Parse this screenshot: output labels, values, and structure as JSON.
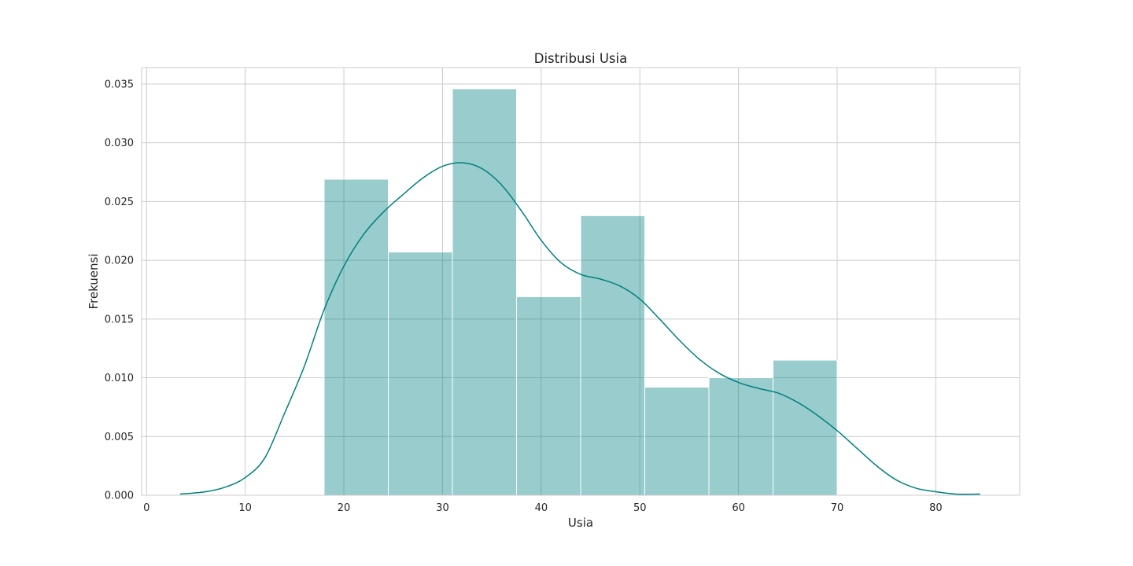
{
  "chart_data": {
    "type": "histogram",
    "title": "Distribusi Usia",
    "xlabel": "Usia",
    "ylabel": "Frekuensi",
    "xlim": [
      -0.5,
      88.5
    ],
    "ylim": [
      0,
      0.0364
    ],
    "x_ticks": [
      0,
      10,
      20,
      30,
      40,
      50,
      60,
      70,
      80
    ],
    "y_ticks": [
      0.0,
      0.005,
      0.01,
      0.015,
      0.02,
      0.025,
      0.03,
      0.035
    ],
    "y_tick_labels": [
      "0.000",
      "0.005",
      "0.010",
      "0.015",
      "0.020",
      "0.025",
      "0.030",
      "0.035"
    ],
    "grid": true,
    "bins": [
      {
        "x0": 18.0,
        "x1": 24.5,
        "value": 0.0269
      },
      {
        "x0": 24.5,
        "x1": 31.0,
        "value": 0.0207
      },
      {
        "x0": 31.0,
        "x1": 37.5,
        "value": 0.0346
      },
      {
        "x0": 37.5,
        "x1": 44.0,
        "value": 0.0169
      },
      {
        "x0": 44.0,
        "x1": 50.5,
        "value": 0.0238
      },
      {
        "x0": 50.5,
        "x1": 57.0,
        "value": 0.0092
      },
      {
        "x0": 57.0,
        "x1": 63.5,
        "value": 0.01
      },
      {
        "x0": 63.5,
        "x1": 70.0,
        "value": 0.0115
      }
    ],
    "kde": [
      [
        3.4,
        0.0001
      ],
      [
        6,
        0.0003
      ],
      [
        8,
        0.0007
      ],
      [
        10,
        0.0015
      ],
      [
        12,
        0.0032
      ],
      [
        14,
        0.007
      ],
      [
        16,
        0.011
      ],
      [
        18,
        0.0158
      ],
      [
        20,
        0.0195
      ],
      [
        22,
        0.0222
      ],
      [
        24,
        0.0241
      ],
      [
        26,
        0.0256
      ],
      [
        28,
        0.027
      ],
      [
        30,
        0.028
      ],
      [
        32,
        0.0283
      ],
      [
        34,
        0.0278
      ],
      [
        36,
        0.0264
      ],
      [
        38,
        0.0242
      ],
      [
        40,
        0.0217
      ],
      [
        42,
        0.0198
      ],
      [
        44,
        0.0188
      ],
      [
        46,
        0.0184
      ],
      [
        48,
        0.0178
      ],
      [
        50,
        0.0167
      ],
      [
        52,
        0.015
      ],
      [
        54,
        0.0132
      ],
      [
        56,
        0.0116
      ],
      [
        58,
        0.0104
      ],
      [
        60,
        0.0096
      ],
      [
        62,
        0.0091
      ],
      [
        64,
        0.0087
      ],
      [
        66,
        0.0079
      ],
      [
        68,
        0.0068
      ],
      [
        70,
        0.0055
      ],
      [
        72,
        0.004
      ],
      [
        74,
        0.0025
      ],
      [
        76,
        0.0013
      ],
      [
        78,
        0.0006
      ],
      [
        80,
        0.0003
      ],
      [
        82,
        0.0001
      ],
      [
        84.5,
        0.0001
      ]
    ],
    "colors": {
      "bar_fill": "#008080",
      "bar_opacity": 0.4,
      "kde_line": "#008080",
      "grid": "#cccccc",
      "spine": "#cccccc"
    }
  }
}
